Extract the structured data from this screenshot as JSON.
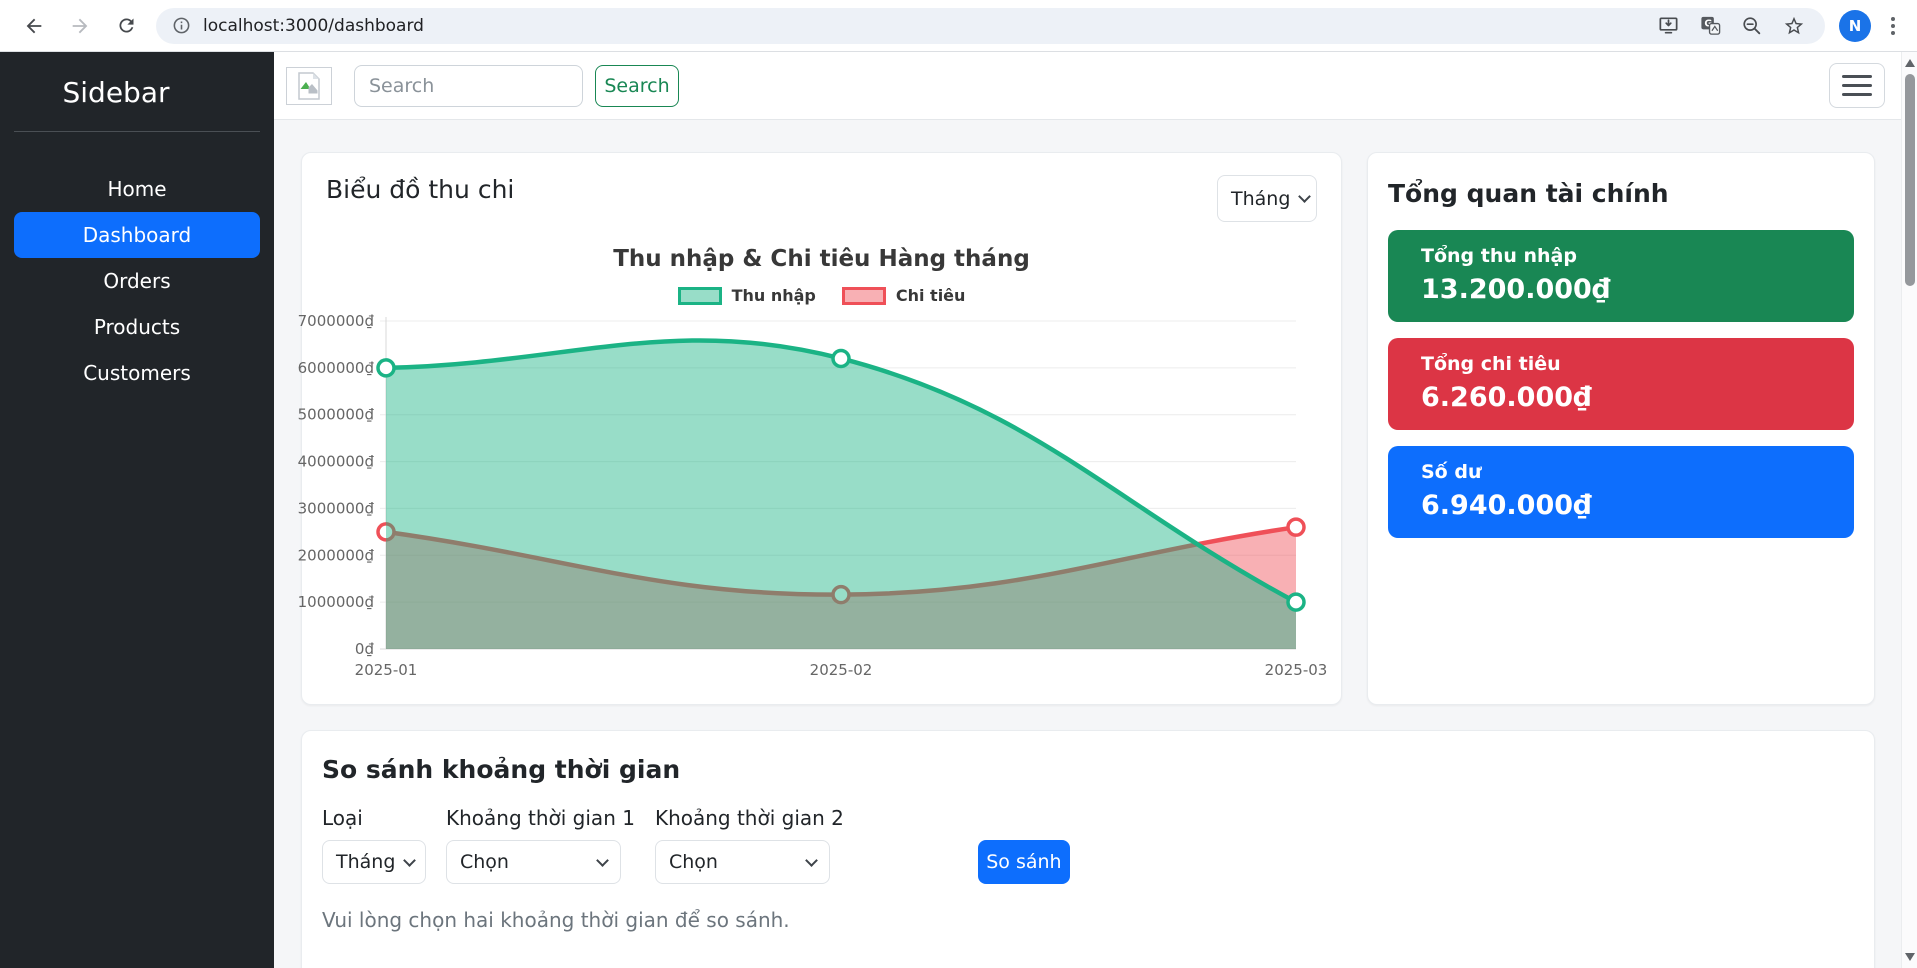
{
  "browser": {
    "url": "localhost:3000/dashboard",
    "avatar_letter": "N"
  },
  "sidebar": {
    "title": "Sidebar",
    "items": [
      {
        "label": "Home",
        "active": false
      },
      {
        "label": "Dashboard",
        "active": true
      },
      {
        "label": "Orders",
        "active": false
      },
      {
        "label": "Products",
        "active": false
      },
      {
        "label": "Customers",
        "active": false
      }
    ]
  },
  "topbar": {
    "search_placeholder": "Search",
    "search_button": "Search"
  },
  "chart_card": {
    "title": "Biểu đồ thu chi",
    "period_select": "Tháng"
  },
  "chart_data": {
    "type": "area",
    "title": "Thu nhập & Chi tiêu Hàng tháng",
    "categories": [
      "2025-01",
      "2025-02",
      "2025-03"
    ],
    "series": [
      {
        "name": "Thu nhập",
        "values": [
          6000000,
          6200000,
          1000000
        ],
        "color": "#1bb385",
        "fill": "rgba(27,179,133,0.45)"
      },
      {
        "name": "Chi tiêu",
        "values": [
          2500000,
          1160000,
          2600000
        ],
        "color": "#ef5058",
        "fill": "rgba(239,80,88,0.45)"
      }
    ],
    "ylim": [
      0,
      7000000
    ],
    "ytick_step": 1000000,
    "ytick_suffix": "₫",
    "legend_position": "top",
    "grid": true,
    "line_tension": 0.4
  },
  "summary": {
    "title": "Tổng quan tài chính",
    "stats": [
      {
        "label": "Tổng thu nhập",
        "value": "13.200.000₫",
        "color": "#198754"
      },
      {
        "label": "Tổng chi tiêu",
        "value": "6.260.000₫",
        "color": "#dc3545"
      },
      {
        "label": "Số dư",
        "value": "6.940.000₫",
        "color": "#0d6efd"
      }
    ]
  },
  "compare": {
    "title": "So sánh khoảng thời gian",
    "fields": [
      {
        "label": "Loại",
        "value": "Tháng"
      },
      {
        "label": "Khoảng thời gian 1",
        "value": "Chọn"
      },
      {
        "label": "Khoảng thời gian 2",
        "value": "Chọn"
      }
    ],
    "button": "So sánh",
    "note": "Vui lòng chọn hai khoảng thời gian để so sánh."
  },
  "theme": {
    "primary": "#0d6efd",
    "success": "#198754",
    "danger": "#dc3545",
    "sidebar_bg": "#212529",
    "search_outline": "#198754"
  }
}
